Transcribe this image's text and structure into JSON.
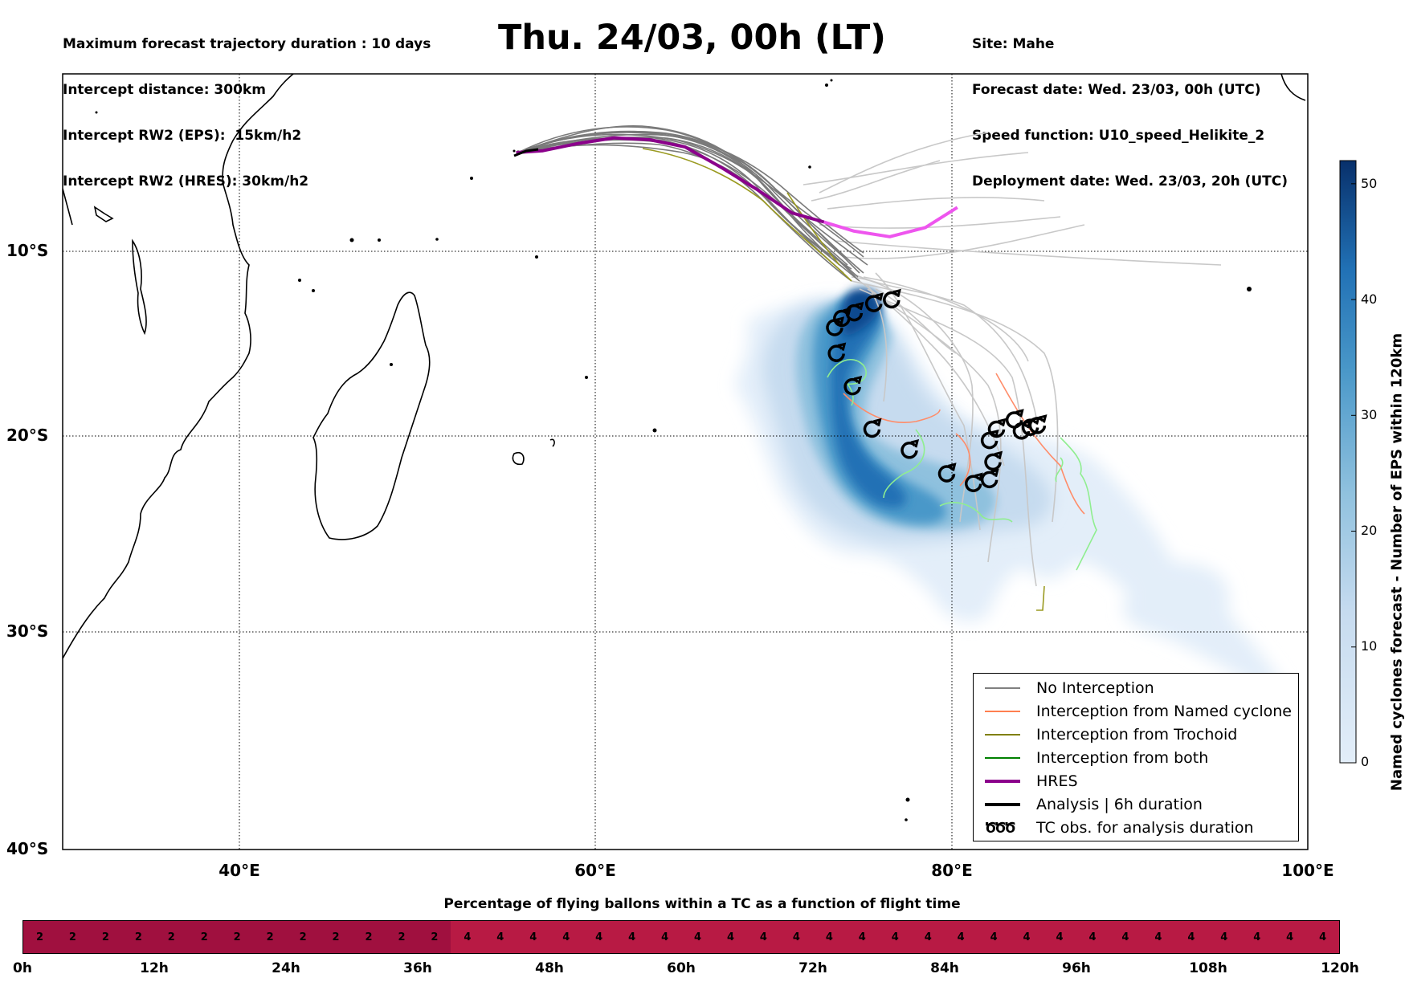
{
  "header": {
    "info_left": [
      "Maximum forecast trajectory duration : 10 days",
      "Intercept distance: 300km",
      "Intercept RW2 (EPS):  15km/h2",
      "Intercept RW2 (HRES): 30km/h2"
    ],
    "title": "Thu. 24/03, 00h (LT)",
    "info_right": [
      "Site: Mahe",
      "Forecast date: Wed. 23/03, 00h (UTC)",
      "Speed function: U10_speed_Helikite_2",
      "Deployment date: Wed. 23/03, 20h (UTC)"
    ]
  },
  "map": {
    "lat_labels": [
      "10°S",
      "20°S",
      "30°S",
      "40°S"
    ],
    "lon_labels": [
      "40°E",
      "60°E",
      "80°E",
      "100°E"
    ],
    "lat_values": [
      -10,
      -20,
      -30,
      -40
    ],
    "lon_values": [
      40,
      60,
      80,
      100
    ],
    "lon_range": [
      30,
      100
    ],
    "lat_range": [
      -40,
      -0.3
    ],
    "grid": true
  },
  "colorbar": {
    "title": "Named cyclones forecast - Number of EPS within 120km",
    "ticks": [
      "0",
      "10",
      "20",
      "30",
      "40",
      "50"
    ],
    "tick_values": [
      0,
      10,
      20,
      30,
      40,
      50
    ],
    "max": 52,
    "color_low": "#e3eef9",
    "color_high": "#08306b"
  },
  "legend": {
    "items": [
      {
        "label": "No Interception",
        "color": "#808080",
        "kind": "line"
      },
      {
        "label": "Interception from Named cyclone",
        "color": "#ff7f50",
        "kind": "line"
      },
      {
        "label": "Interception from Trochoid",
        "color": "#808000",
        "kind": "line"
      },
      {
        "label": "Interception from both",
        "color": "#008000",
        "kind": "line"
      },
      {
        "label": "HRES",
        "color": "#8b008b",
        "kind": "thick"
      },
      {
        "label": "Analysis | 6h duration",
        "color": "#000000",
        "kind": "thick"
      },
      {
        "label": "TC obs. for analysis duration",
        "color": "#000000",
        "kind": "symbol",
        "symbol": "ԾԾԾ"
      }
    ]
  },
  "hres_track": {
    "color_past": "#8b008b",
    "color_future": "#ee55ee",
    "points_past": [
      [
        55.5,
        -4.6
      ],
      [
        57,
        -4.5
      ],
      [
        59,
        -4.1
      ],
      [
        61,
        -3.8
      ],
      [
        63,
        -3.9
      ],
      [
        65,
        -4.3
      ],
      [
        67,
        -5.4
      ],
      [
        69,
        -6.6
      ],
      [
        71,
        -7.9
      ],
      [
        72.8,
        -8.4
      ]
    ],
    "points_future": [
      [
        72.8,
        -8.4
      ],
      [
        74.5,
        -8.9
      ],
      [
        76.5,
        -9.2
      ],
      [
        78.5,
        -8.7
      ],
      [
        80.3,
        -7.6
      ]
    ]
  },
  "tc_obs": [
    [
      76.6,
      -12.6
    ],
    [
      75.6,
      -12.8
    ],
    [
      74.5,
      -13.3
    ],
    [
      73.8,
      -13.6
    ],
    [
      73.4,
      -14.1
    ],
    [
      73.5,
      -15.5
    ],
    [
      74.4,
      -17.3
    ],
    [
      75.5,
      -19.6
    ],
    [
      77.6,
      -20.7
    ],
    [
      79.7,
      -21.9
    ],
    [
      82.1,
      -22.2
    ],
    [
      81.2,
      -22.4
    ],
    [
      82.3,
      -21.3
    ],
    [
      82.1,
      -20.2
    ],
    [
      82.5,
      -19.6
    ],
    [
      83.5,
      -19.1
    ],
    [
      83.9,
      -19.7
    ],
    [
      84.4,
      -19.5
    ],
    [
      84.8,
      -19.4
    ]
  ],
  "pct_panel": {
    "title": "Percentage of flying ballons within a TC as a function of flight time",
    "values": [
      2,
      2,
      2,
      2,
      2,
      2,
      2,
      2,
      2,
      2,
      2,
      2,
      2,
      4,
      4,
      4,
      4,
      4,
      4,
      4,
      4,
      4,
      4,
      4,
      4,
      4,
      4,
      4,
      4,
      4,
      4,
      4,
      4,
      4,
      4,
      4,
      4,
      4,
      4,
      4
    ],
    "color_2": "#a0103f",
    "color_4": "#b81a44",
    "time_labels": [
      "0h",
      "12h",
      "24h",
      "36h",
      "48h",
      "60h",
      "72h",
      "84h",
      "96h",
      "108h",
      "120h"
    ]
  }
}
